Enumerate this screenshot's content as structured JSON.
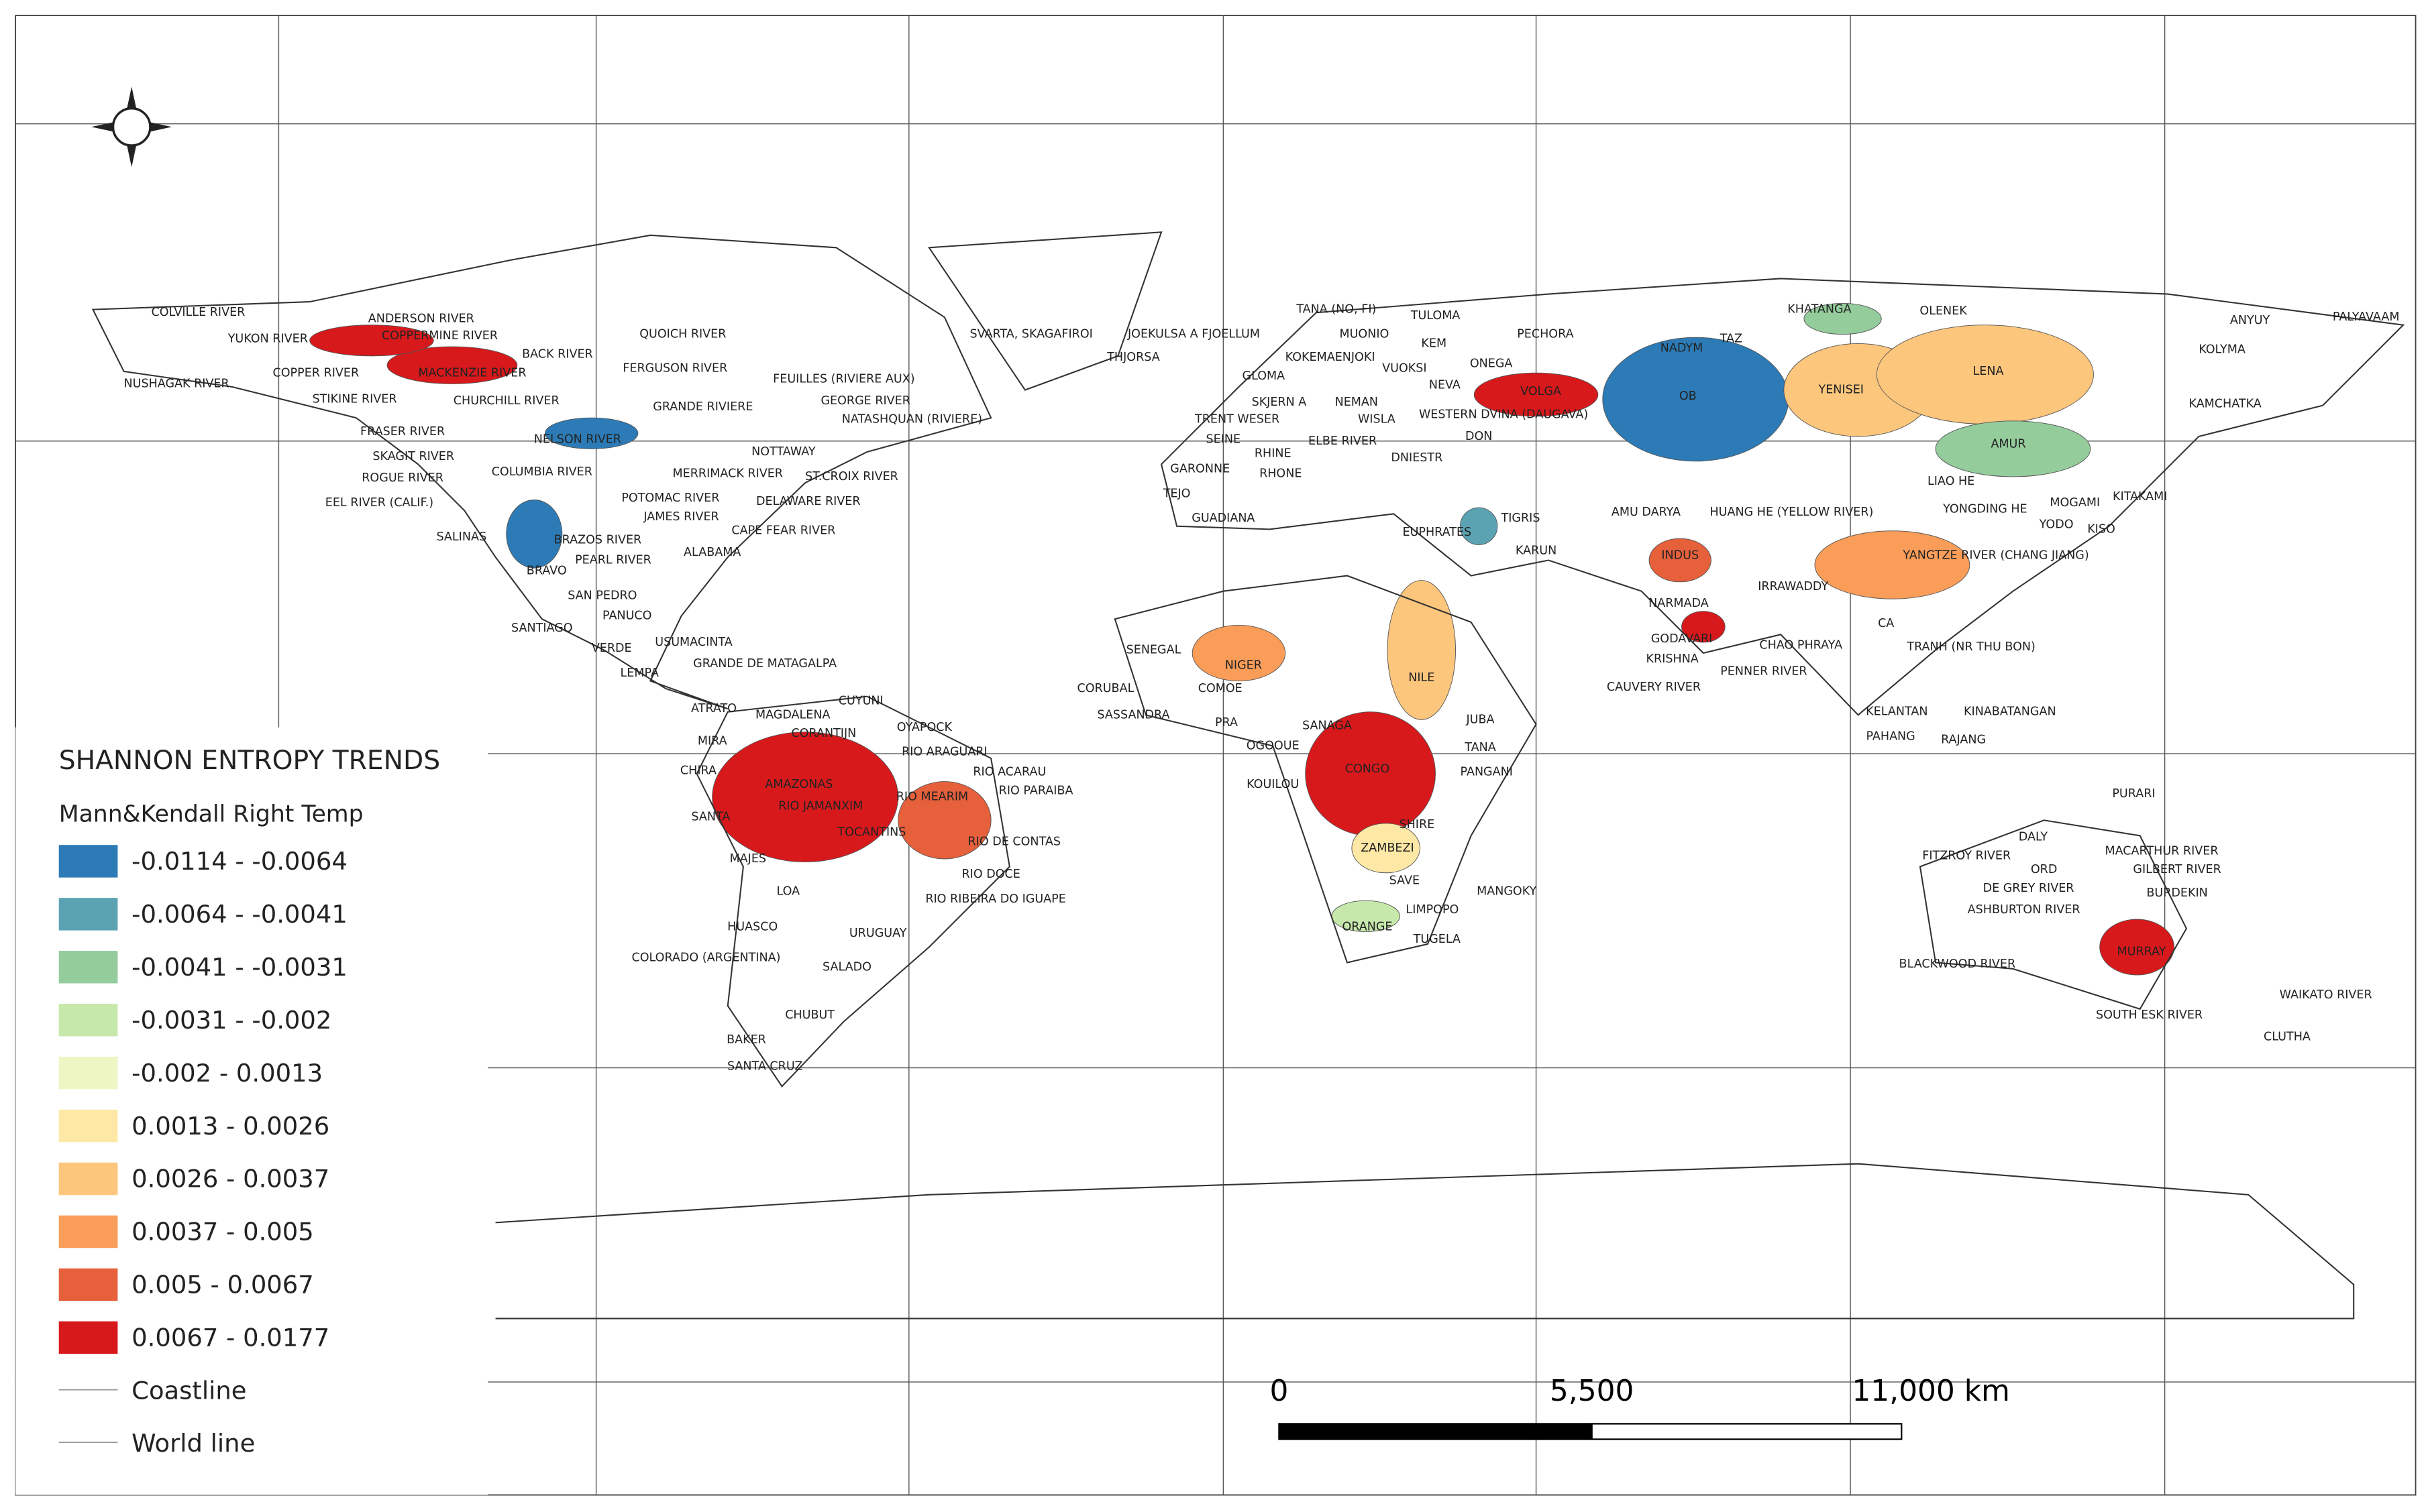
{
  "legend": {
    "title": "SHANNON ENTROPY TRENDS",
    "subtitle": "Mann&Kendall Right Temp",
    "items": [
      {
        "label": "-0.0114 - -0.0064",
        "color": "#2c7bb6"
      },
      {
        "label": "-0.0064 - -0.0041",
        "color": "#5ba3b3"
      },
      {
        "label": "-0.0041 - -0.0031",
        "color": "#94cc9c"
      },
      {
        "label": "-0.0031 - -0.002",
        "color": "#c7e8ab"
      },
      {
        "label": "-0.002 - 0.0013",
        "color": "#eef6c3"
      },
      {
        "label": "0.0013 - 0.0026",
        "color": "#fde8a5"
      },
      {
        "label": "0.0026 - 0.0037",
        "color": "#fdc67d"
      },
      {
        "label": "0.0037 - 0.005",
        "color": "#f99d59"
      },
      {
        "label": "0.005 - 0.0067",
        "color": "#e6603c"
      },
      {
        "label": "0.0067 - 0.0177",
        "color": "#d7191c"
      }
    ],
    "lines": [
      "Coastline",
      "World line"
    ]
  },
  "scale_bar": {
    "labels": [
      "0",
      "5,500",
      "11,000 km"
    ]
  },
  "rivers": [
    "COLVILLE RIVER",
    "ANDERSON RIVER",
    "YUKON RIVER",
    "COPPERMINE RIVER",
    "QUOICH RIVER",
    "SVARTA, SKAGAFIROI",
    "JOEKULSA A FJOELLUM",
    "TANA (NO, FI)",
    "TULOMA",
    "ANYUY",
    "PALYAVAAM",
    "KHATANGA",
    "OLENEK",
    "NUSHAGAK RIVER",
    "COPPER RIVER",
    "MACKENZIE RIVER",
    "BACK RIVER",
    "FERGUSON RIVER",
    "THJORSA",
    "MUONIO",
    "KEM",
    "PECHORA",
    "NADYM",
    "TAZ",
    "KOLYMA",
    "KOKEMAENJOKI",
    "VUOKSI",
    "ONEGA",
    "FEUILLES (RIVIERE AUX)",
    "GLOMA",
    "LENA",
    "YENISEI",
    "STIKINE RIVER",
    "CHURCHILL RIVER",
    "GRANDE RIVIERE",
    "GEORGE RIVER",
    "NEVA",
    "VOLGA",
    "OB",
    "SKJERN A",
    "NEMAN",
    "NATASHQUAN (RIVIERE)",
    "TRENT WESER",
    "WISLA",
    "WESTERN DVINA (DAUGAVA)",
    "KAMCHATKA",
    "FRASER RIVER",
    "NELSON RIVER",
    "DON",
    "ELBE RIVER",
    "SEINE",
    "AMUR",
    "SKAGIT RIVER",
    "NOTTAWAY",
    "RHINE",
    "DNIESTR",
    "COLUMBIA RIVER",
    "MERRIMACK RIVER",
    "ST.CROIX RIVER",
    "GARONNE",
    "RHONE",
    "ROGUE RIVER",
    "LIAO HE",
    "POTOMAC RIVER",
    "DELAWARE RIVER",
    "TEJO",
    "MOGAMI",
    "KITAKAMI",
    "EEL RIVER (CALIF.)",
    "JAMES RIVER",
    "GUADIANA",
    "AMU DARYA",
    "HUANG HE (YELLOW RIVER)",
    "YONGDING HE",
    "TIGRIS",
    "YODO",
    "KISO",
    "CAPE FEAR RIVER",
    "SALINAS",
    "BRAZOS RIVER",
    "EUPHRATES",
    "KARUN",
    "INDUS",
    "YANGTZE RIVER (CHANG JIANG)",
    "PEARL RIVER",
    "ALABAMA",
    "BRAVO",
    "IRRAWADDY",
    "SAN PEDRO",
    "NARMADA",
    "PANUCO",
    "CA",
    "SANTIAGO",
    "USUMACINTA",
    "GODAVARI",
    "CHAO PHRAYA",
    "TRANH (NR THU BON)",
    "SENEGAL",
    "VERDE",
    "KRISHNA",
    "NIGER",
    "GRANDE DE MATAGALPA",
    "LEMPA",
    "PENNER RIVER",
    "NILE",
    "CORUBAL",
    "COMOE",
    "CAUVERY RIVER",
    "CUYUNI",
    "ATRATO",
    "MAGDALENA",
    "SASSANDRA",
    "PRA",
    "JUBA",
    "KELANTAN",
    "KINABATANGAN",
    "OYAPOCK",
    "SANAGA",
    "CORANTIJN",
    "MIRA",
    "PAHANG",
    "RAJANG",
    "OGOOUE",
    "TANA",
    "RIO ARAGUARI",
    "CHIRA",
    "CONGO",
    "PANGANI",
    "RIO ACARAU",
    "AMAZONAS",
    "KOUILOU",
    "RIO MEARIM",
    "RIO PARAIBA",
    "PURARI",
    "RIO JAMANXIM",
    "SANTA",
    "SHIRE",
    "TOCANTINS",
    "RIO DE CONTAS",
    "DALY",
    "MACARTHUR RIVER",
    "ZAMBEZI",
    "MAJES",
    "FITZROY RIVER",
    "ORD",
    "GILBERT RIVER",
    "RIO DOCE",
    "SAVE",
    "MANGOKY",
    "LOA",
    "DE GREY RIVER",
    "BURDEKIN",
    "RIO RIBEIRA DO IGUAPE",
    "LIMPOPO",
    "ASHBURTON RIVER",
    "HUASCO",
    "ORANGE",
    "URUGUAY",
    "TUGELA",
    "MURRAY",
    "COLORADO (ARGENTINA)",
    "SALADO",
    "BLACKWOOD RIVER",
    "WAIKATO RIVER",
    "CHUBUT",
    "SOUTH ESK RIVER",
    "CLUTHA",
    "BAKER",
    "SANTA CRUZ"
  ]
}
